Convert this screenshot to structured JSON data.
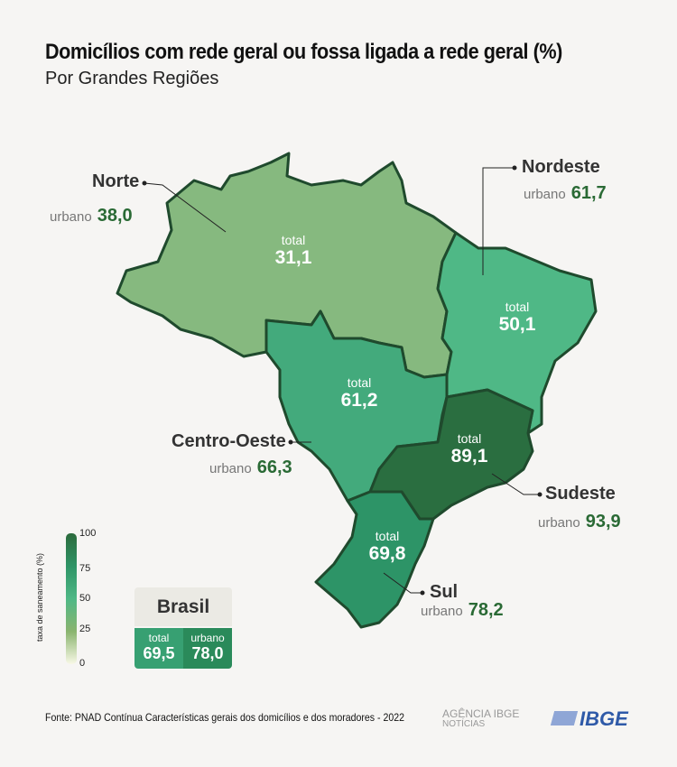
{
  "title": "Domicílios com rede geral ou fossa ligada a rede geral (%)",
  "subtitle": "Por Grandes Regiões",
  "total_label": "total",
  "urban_label": "urbano",
  "regions": {
    "norte": {
      "name": "Norte",
      "total": "31,1",
      "urbano": "38,0",
      "color": "#86b97f"
    },
    "nordeste": {
      "name": "Nordeste",
      "total": "50,1",
      "urbano": "61,7",
      "color": "#4fb886"
    },
    "centro_oeste": {
      "name": "Centro-Oeste",
      "total": "61,2",
      "urbano": "66,3",
      "color": "#43aa7c"
    },
    "sudeste": {
      "name": "Sudeste",
      "total": "89,1",
      "urbano": "93,9",
      "color": "#2a6e40"
    },
    "sul": {
      "name": "Sul",
      "total": "69,8",
      "urbano": "78,2",
      "color": "#2d9467"
    }
  },
  "legend": {
    "title": "taxa de saneamento (%)",
    "ticks": [
      "100",
      "75",
      "50",
      "25",
      "0"
    ]
  },
  "brasil": {
    "name": "Brasil",
    "total": "69,5",
    "urbano": "78,0"
  },
  "source": "Fonte: PNAD Contínua Características gerais dos domicílios e dos moradores - 2022",
  "logos": {
    "agencia": "AGÊNCIA IBGE",
    "noticias": "NOTÍCIAS",
    "ibge": "IBGE"
  }
}
